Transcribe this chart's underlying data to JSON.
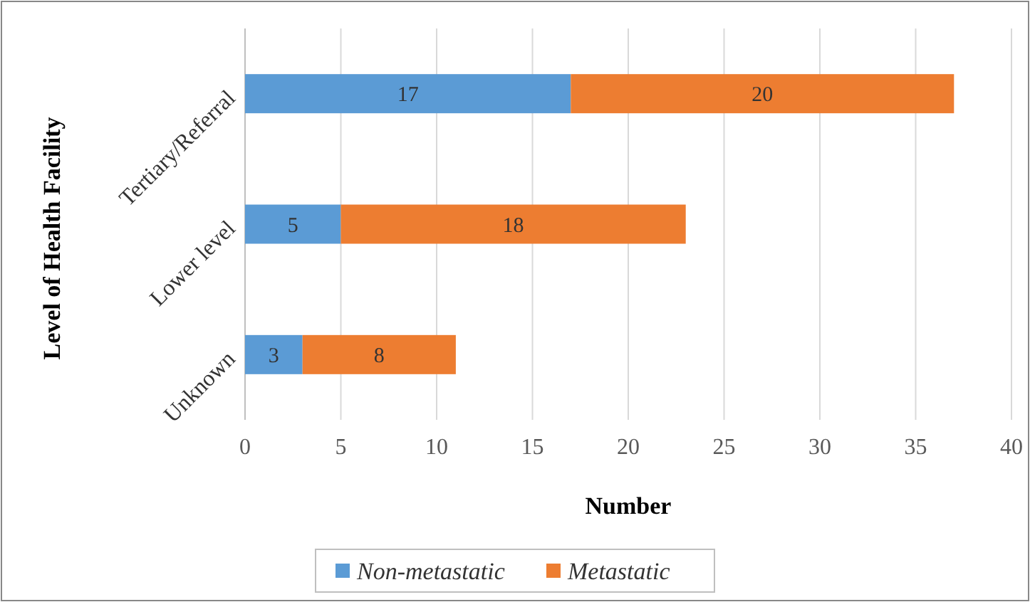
{
  "chart_data": {
    "type": "bar",
    "orientation": "horizontal",
    "stacked": true,
    "xlabel": "Number",
    "ylabel": "Level of Health Facility",
    "categories": [
      "Tertiary/Referral",
      "Lower level",
      "Unknown"
    ],
    "series": [
      {
        "name": "Non-metastatic",
        "color": "#5b9bd5",
        "values": [
          17,
          5,
          3
        ]
      },
      {
        "name": "Metastatic",
        "color": "#ed7d31",
        "values": [
          20,
          18,
          8
        ]
      }
    ],
    "xlim": [
      0,
      40
    ],
    "xticks": [
      0,
      5,
      10,
      15,
      20,
      25,
      30,
      35,
      40
    ],
    "grid": "x",
    "legend": "bottom",
    "data_labels": true
  }
}
